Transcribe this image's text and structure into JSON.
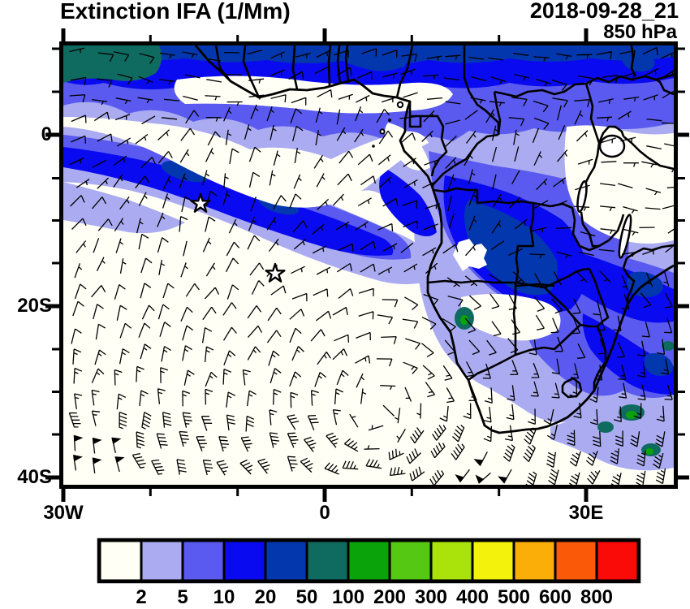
{
  "header": {
    "title": "Extinction IFA (1/Mm)",
    "datetime": "2018-09-28_21",
    "level": "850 hPa"
  },
  "axes": {
    "y_labels": [
      {
        "label": "0"
      },
      {
        "label": "20S"
      },
      {
        "label": "40S"
      }
    ],
    "x_labels": [
      {
        "label": "30W"
      },
      {
        "label": "0"
      },
      {
        "label": "30E"
      }
    ]
  },
  "colorbar": {
    "levels": [
      "2",
      "5",
      "10",
      "20",
      "50",
      "100",
      "200",
      "300",
      "400",
      "500",
      "600",
      "800"
    ],
    "colors": [
      "#FFFFF6",
      "#ABABF1",
      "#5A5AF0",
      "#0A0AF0",
      "#0337AD",
      "#0F6B60",
      "#0AA30A",
      "#55C813",
      "#AAE20B",
      "#F2F20C",
      "#FBAD08",
      "#FA5A08",
      "#FA0B08"
    ]
  },
  "chart_data": {
    "type": "heatmap",
    "title": "Extinction IFA (1/Mm)",
    "datetime": "2018-09-28_21",
    "pressure_level": "850 hPa",
    "variable": "Aerosol extinction coefficient (1/Mm), filled contours with wind barbs",
    "x_axis": {
      "tick_labels": [
        "30W",
        "0",
        "30E"
      ],
      "minor_tick_interval_deg": 10,
      "range_lon_deg": [
        -31,
        40
      ]
    },
    "y_axis": {
      "tick_labels": [
        "0",
        "20S",
        "40S"
      ],
      "minor_tick_interval_deg": 5,
      "range_lat_deg": [
        -41,
        10.5
      ]
    },
    "colorbar_levels": [
      2,
      5,
      10,
      20,
      50,
      100,
      200,
      300,
      400,
      500,
      600,
      800
    ],
    "colorbar_colors": [
      "#FFFFF6",
      "#ABABF1",
      "#5A5AF0",
      "#0A0AF0",
      "#0337AD",
      "#0F6B60",
      "#0AA30A",
      "#55C813",
      "#AAE20B",
      "#F2F20C",
      "#FBAD08",
      "#FA5A08",
      "#FA0B08"
    ],
    "legend_position": "bottom",
    "overlays": [
      "wind barbs",
      "coastlines",
      "country borders",
      "lakes",
      "star markers",
      "Gulf of Guinea islands"
    ],
    "features": {
      "star_markers_lonlat": [
        [
          -14.2,
          -8.1
        ],
        [
          -5.7,
          -16.2
        ]
      ],
      "high_extinction_regions": [
        "northern tropical band (dark blue strip along top edge)",
        "Gulf of Guinea outflow plume over SE Atlantic",
        "Congo/Angola biomass-burning core",
        "Zambia-Zimbabwe-Mozambique band",
        "teal patch in NW corner"
      ],
      "clear_regions": [
        "subtropical South Atlantic",
        "Sahel strip",
        "East Africa (Kenya-Tanzania)",
        "far southern ocean"
      ]
    }
  }
}
